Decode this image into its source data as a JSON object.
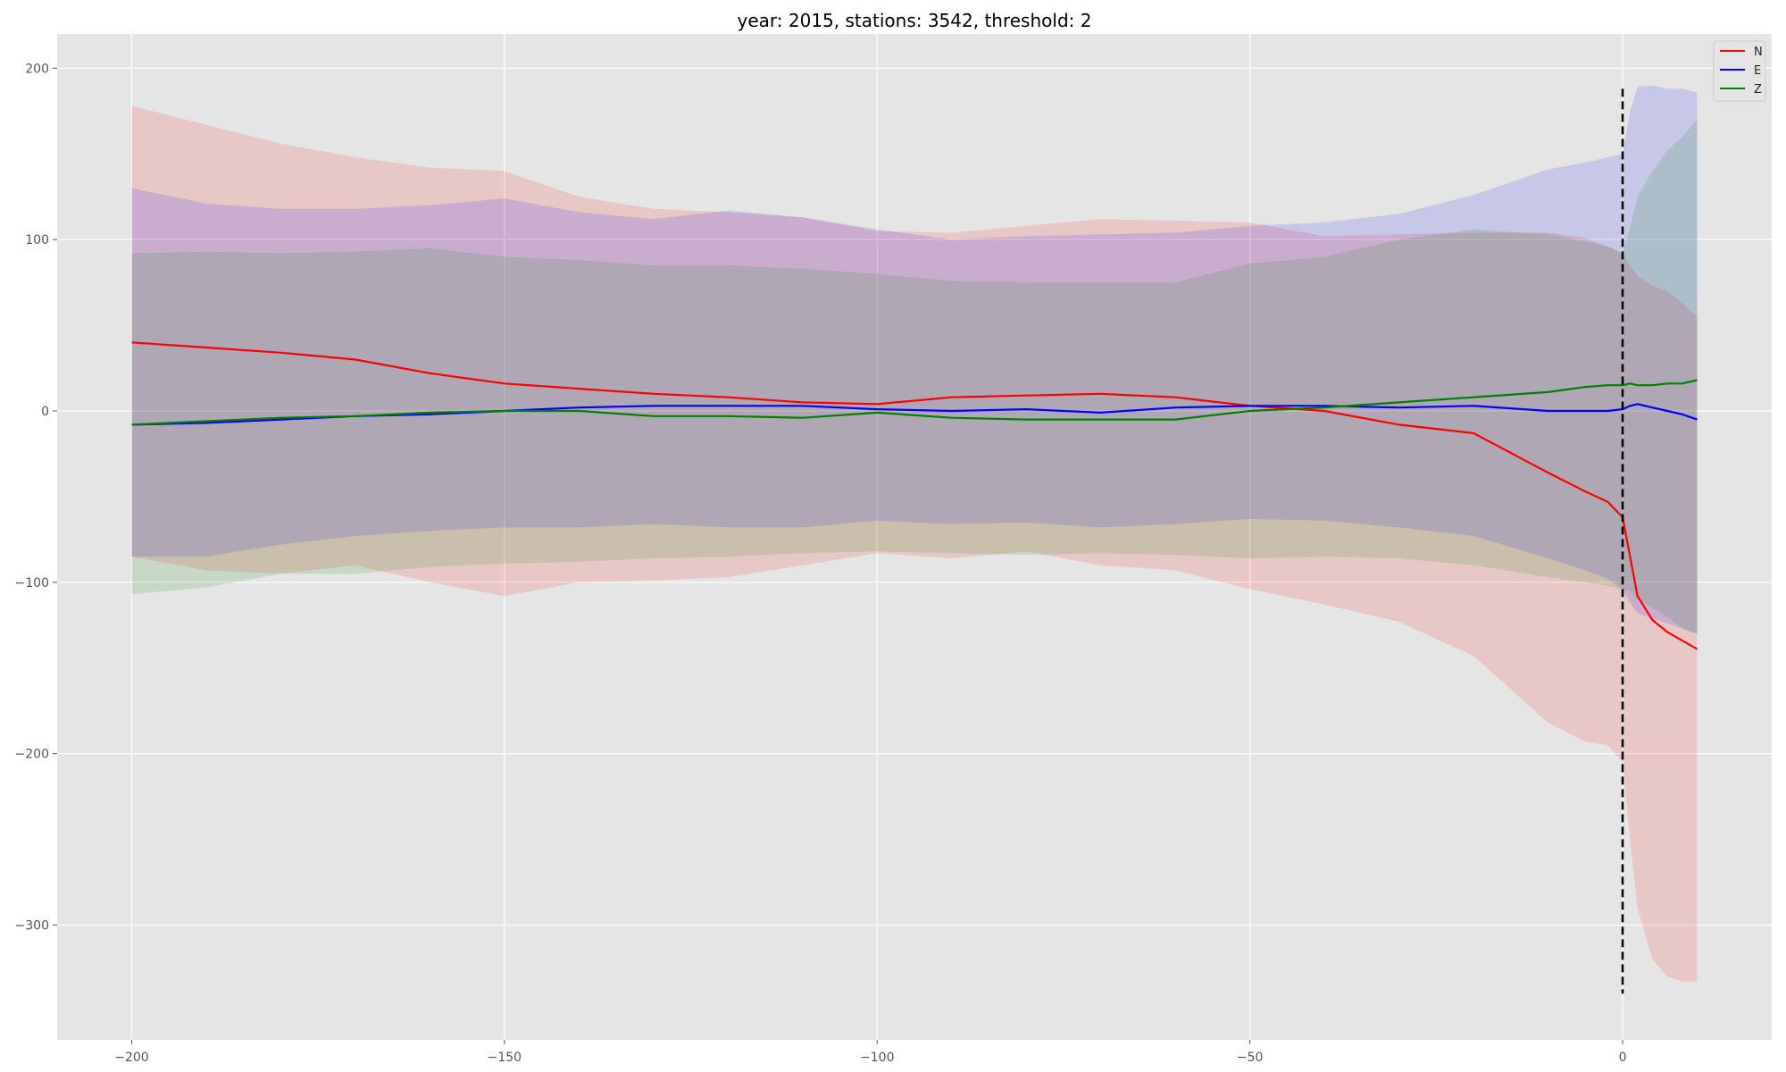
{
  "chart_data": {
    "type": "line",
    "title": "year: 2015, stations: 3542, threshold: 2",
    "xlabel": "",
    "ylabel": "",
    "xlim": [
      -210,
      20
    ],
    "ylim": [
      -367,
      220
    ],
    "x_ticks": [
      -200,
      -150,
      -100,
      -50,
      0
    ],
    "x_tick_labels": [
      "−200",
      "−150",
      "−100",
      "−50",
      "0"
    ],
    "y_ticks": [
      200,
      100,
      0,
      -100,
      -200,
      -300
    ],
    "y_tick_labels": [
      "200",
      "100",
      "0",
      "−100",
      "−200",
      "−300"
    ],
    "grid": true,
    "legend_position": "top-right",
    "vline": {
      "x": 0,
      "ymin": -340,
      "ymax": 188,
      "style": "dashed",
      "color": "#000000"
    },
    "x": [
      -200,
      -190,
      -180,
      -170,
      -160,
      -150,
      -140,
      -130,
      -120,
      -110,
      -100,
      -90,
      -80,
      -70,
      -60,
      -50,
      -40,
      -30,
      -20,
      -10,
      -5,
      -2,
      0,
      1,
      2,
      4,
      6,
      8,
      10
    ],
    "series": [
      {
        "name": "N",
        "color": "#ff0000",
        "values": [
          40,
          37,
          34,
          30,
          22,
          16,
          13,
          10,
          8,
          5,
          4,
          8,
          9,
          10,
          8,
          3,
          0,
          -8,
          -13,
          -36,
          -47,
          -53,
          -62,
          -85,
          -108,
          -122,
          -129,
          -134,
          -139
        ],
        "band_upper": [
          178,
          167,
          156,
          148,
          142,
          140,
          125,
          118,
          116,
          113,
          105,
          104,
          108,
          112,
          111,
          110,
          102,
          103,
          104,
          104,
          101,
          96,
          92,
          85,
          79,
          73,
          70,
          63,
          55
        ],
        "band_lower": [
          -85,
          -93,
          -95,
          -90,
          -100,
          -108,
          -100,
          -99,
          -97,
          -90,
          -83,
          -86,
          -82,
          -90,
          -93,
          -104,
          -113,
          -123,
          -143,
          -182,
          -193,
          -195,
          -205,
          -250,
          -290,
          -320,
          -330,
          -333,
          -333
        ]
      },
      {
        "name": "E",
        "color": "#0000ff",
        "values": [
          -8,
          -7,
          -5,
          -3,
          -2,
          0,
          2,
          3,
          3,
          3,
          1,
          0,
          1,
          -1,
          2,
          3,
          3,
          2,
          3,
          0,
          0,
          0,
          1,
          3,
          4,
          2,
          0,
          -2,
          -5
        ],
        "band_upper": [
          130,
          121,
          118,
          118,
          120,
          124,
          116,
          112,
          117,
          113,
          106,
          100,
          102,
          103,
          104,
          108,
          110,
          115,
          126,
          141,
          145,
          148,
          150,
          175,
          189,
          190,
          188,
          188,
          186
        ],
        "band_lower": [
          -85,
          -85,
          -78,
          -73,
          -70,
          -68,
          -68,
          -66,
          -68,
          -68,
          -64,
          -66,
          -65,
          -68,
          -66,
          -63,
          -64,
          -68,
          -73,
          -86,
          -93,
          -98,
          -104,
          -112,
          -118,
          -121,
          -124,
          -127,
          -130
        ]
      },
      {
        "name": "Z",
        "color": "#008000",
        "values": [
          -8,
          -6,
          -4,
          -3,
          -1,
          0,
          0,
          -3,
          -3,
          -4,
          -1,
          -4,
          -5,
          -5,
          -5,
          0,
          2,
          5,
          8,
          11,
          14,
          15,
          15,
          16,
          15,
          15,
          16,
          16,
          18
        ],
        "band_upper": [
          92,
          93,
          92,
          93,
          95,
          90,
          88,
          85,
          85,
          83,
          80,
          76,
          75,
          75,
          75,
          86,
          90,
          100,
          106,
          103,
          99,
          96,
          92,
          107,
          125,
          140,
          152,
          160,
          170
        ],
        "band_lower": [
          -107,
          -103,
          -95,
          -95,
          -91,
          -89,
          -88,
          -86,
          -85,
          -83,
          -82,
          -83,
          -84,
          -83,
          -84,
          -86,
          -85,
          -86,
          -90,
          -97,
          -100,
          -102,
          -104,
          -105,
          -110,
          -115,
          -120,
          -127,
          -130
        ]
      }
    ]
  }
}
